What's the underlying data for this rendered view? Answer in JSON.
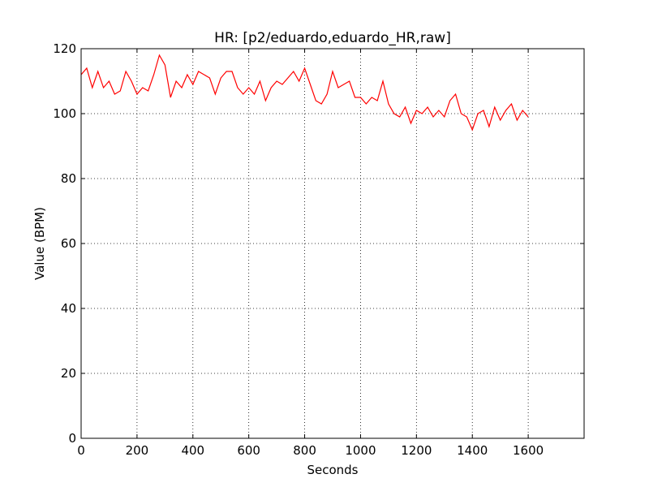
{
  "chart_data": {
    "type": "line",
    "title": "HR: [p2/eduardo,eduardo_HR,raw]",
    "x_label": "Seconds",
    "y_label": "Value (BPM)",
    "x": [
      0,
      20,
      40,
      60,
      80,
      100,
      120,
      140,
      160,
      180,
      200,
      220,
      240,
      260,
      280,
      300,
      320,
      340,
      360,
      380,
      400,
      420,
      440,
      460,
      480,
      500,
      520,
      540,
      560,
      580,
      600,
      620,
      640,
      660,
      680,
      700,
      720,
      740,
      760,
      780,
      800,
      820,
      840,
      860,
      880,
      900,
      920,
      940,
      960,
      980,
      1000,
      1020,
      1040,
      1060,
      1080,
      1100,
      1120,
      1140,
      1160,
      1180,
      1200,
      1220,
      1240,
      1260,
      1280,
      1300,
      1320,
      1340,
      1360,
      1380,
      1400,
      1420,
      1440,
      1460,
      1480,
      1500,
      1520,
      1540,
      1560,
      1580,
      1600
    ],
    "series": [
      {
        "name": "HR",
        "color": "#ff0000",
        "values": [
          112,
          114,
          108,
          113,
          108,
          110,
          106,
          107,
          113,
          110,
          106,
          108,
          107,
          112,
          118,
          115,
          105,
          110,
          108,
          112,
          109,
          113,
          112,
          111,
          106,
          111,
          113,
          113,
          108,
          106,
          108,
          106,
          110,
          104,
          108,
          110,
          109,
          111,
          113,
          110,
          114,
          109,
          104,
          103,
          106,
          113,
          108,
          109,
          110,
          105,
          105,
          103,
          105,
          104,
          110,
          103,
          100,
          99,
          102,
          97,
          101,
          100,
          102,
          99,
          101,
          99,
          104,
          106,
          100,
          99,
          95,
          100,
          101,
          96,
          102,
          98,
          101,
          103,
          98,
          101,
          99
        ]
      }
    ],
    "xlim": [
      0,
      1800
    ],
    "ylim": [
      0,
      120
    ],
    "xticks": [
      0,
      200,
      400,
      600,
      800,
      1000,
      1200,
      1400,
      1600
    ],
    "yticks": [
      0,
      20,
      40,
      60,
      80,
      100,
      120
    ],
    "grid": true
  }
}
